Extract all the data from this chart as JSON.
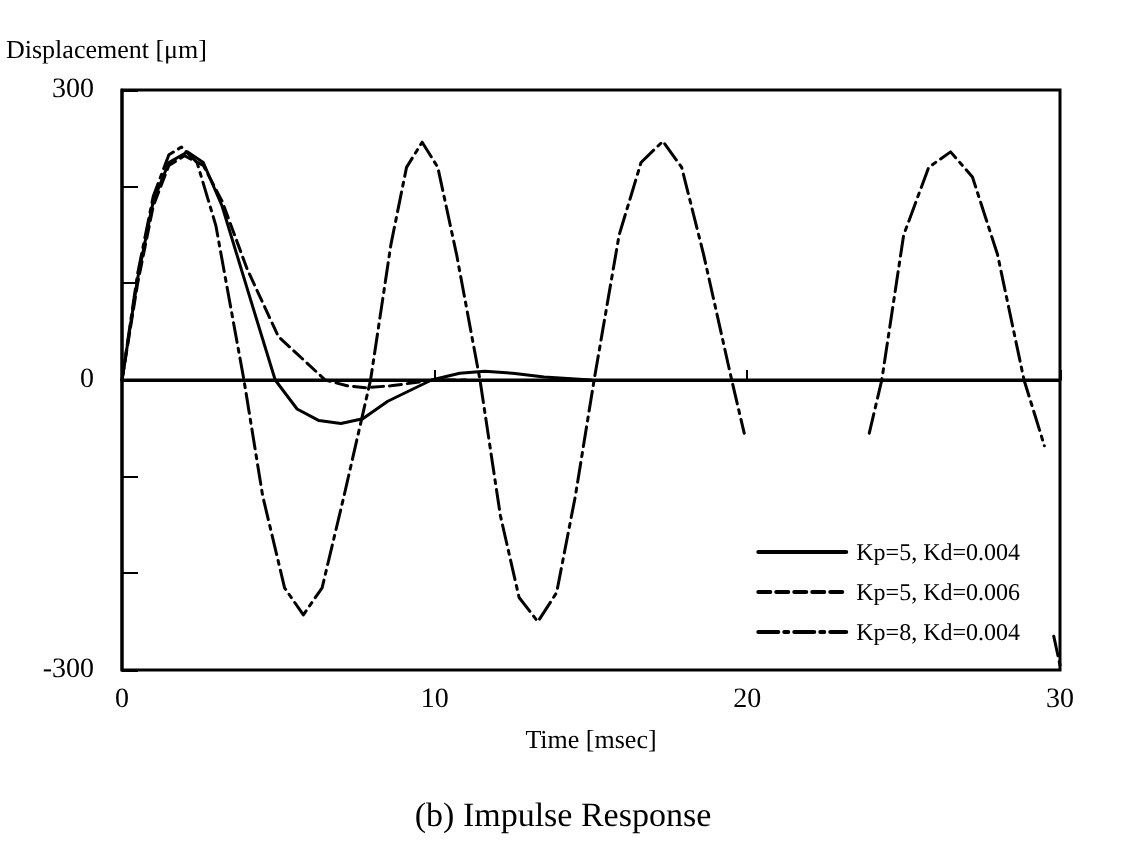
{
  "chart_data": {
    "type": "line",
    "title": "(b) Impulse Response",
    "xlabel": "Time [msec]",
    "ylabel": "Displacement [μm]",
    "xlim": [
      0,
      30
    ],
    "xticks": [
      0,
      10,
      20,
      30
    ],
    "ylim": [
      -300,
      300
    ],
    "yticks": [
      -300,
      {
        "value": -200,
        "label": null
      },
      {
        "value": -100,
        "label": null
      },
      0,
      {
        "value": 100,
        "label": null
      },
      {
        "value": 200,
        "label": null
      },
      300
    ],
    "grid": false,
    "legend": "bottom right",
    "marker": "none",
    "ref_lines": [
      {
        "axis": "y",
        "value": 0,
        "color": "#000000"
      }
    ],
    "series": [
      {
        "name": "Kp=5, Kd=0.004",
        "color": "#000000",
        "line_style": "solid",
        "x": [
          0,
          0.5,
          1,
          1.5,
          2.1,
          2.6,
          3.2,
          4,
          4.9,
          5.6,
          6.3,
          7,
          7.7,
          8.5,
          9.9,
          10.8,
          11.6,
          12.5,
          13.5,
          15
        ],
        "values": [
          0,
          105,
          185,
          225,
          236,
          225,
          180,
          95,
          0,
          -30,
          -42,
          -45,
          -40,
          -22,
          0,
          7,
          9,
          7,
          3,
          0
        ]
      },
      {
        "name": "Kp=5, Kd=0.006",
        "color": "#000000",
        "line_style": "dashed",
        "x": [
          0,
          0.5,
          1,
          1.5,
          2,
          2.6,
          3.2,
          4,
          5,
          6.5,
          7.2,
          7.8,
          8.6,
          10,
          11
        ],
        "values": [
          0,
          100,
          180,
          222,
          232,
          222,
          185,
          115,
          45,
          0,
          -6,
          -8,
          -6,
          0,
          0
        ]
      },
      {
        "name": "Kp=8, Kd=0.004",
        "color": "#000000",
        "line_style": "dashdot",
        "x": [
          0,
          0.5,
          1,
          1.5,
          1.9,
          2.4,
          3,
          3.9,
          4.5,
          5.2,
          5.8,
          6.4,
          7.1,
          7.95,
          8.6,
          9.1,
          9.6,
          10.1,
          10.7,
          11.45,
          12.1,
          12.7,
          13.3,
          13.9,
          14.5,
          15.1,
          15.9,
          16.6,
          17.3,
          17.9,
          18.6,
          19.5,
          19.9,
          21.5,
          23.9,
          24.3,
          25,
          25.8,
          26.5,
          27.2,
          28,
          28.85,
          29.5,
          29.65,
          29.8,
          30
        ],
        "values": [
          0,
          110,
          190,
          233,
          241,
          225,
          160,
          0,
          -120,
          -215,
          -243,
          -215,
          -120,
          0,
          140,
          220,
          246,
          220,
          130,
          0,
          -140,
          -225,
          -250,
          -220,
          -120,
          0,
          150,
          225,
          247,
          220,
          130,
          0,
          -55,
          null,
          -55,
          0,
          150,
          220,
          236,
          210,
          130,
          0,
          -68,
          null,
          -265,
          -295
        ]
      }
    ]
  }
}
